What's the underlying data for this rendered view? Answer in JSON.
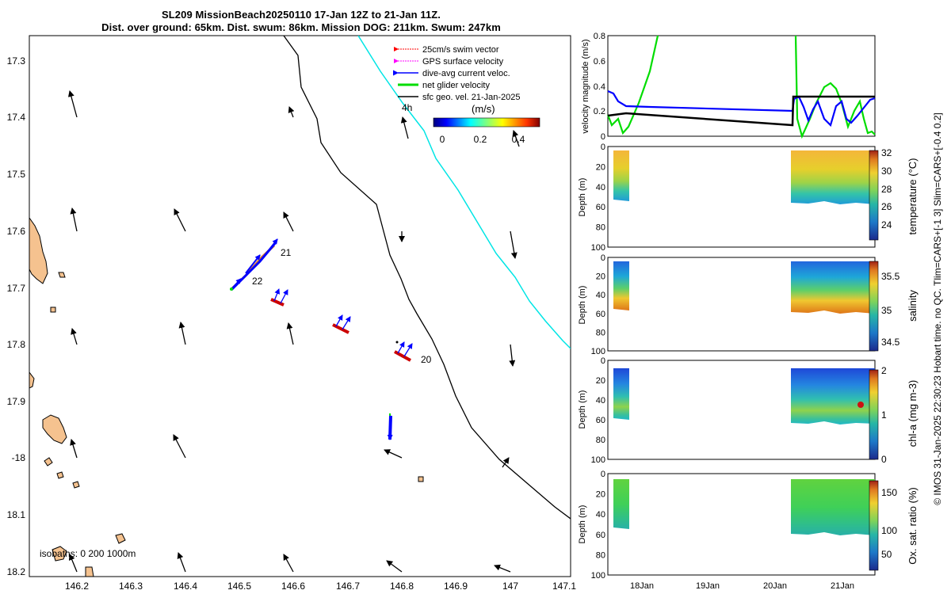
{
  "header": {
    "line1": "SL209 MissionBeach20250110 17-Jan 12Z to 21-Jan 11Z.",
    "line2": "Dist. over ground: 65km. Dist. swum: 86km. Mission DOG: 211km. Swum: 247km"
  },
  "map": {
    "lat_ticks": [
      "17.3",
      "17.4",
      "17.5",
      "17.6",
      "17.7",
      "17.8",
      "17.9",
      "-18",
      "18.1",
      "18.2"
    ],
    "lon_ticks": [
      "146.2",
      "146.3",
      "146.4",
      "146.5",
      "146.6",
      "146.7",
      "146.8",
      "146.9",
      "147",
      "147.1"
    ],
    "legend": {
      "items": [
        {
          "label": "25cm/s swim vector",
          "color": "#ff0000"
        },
        {
          "label": "GPS surface velocity",
          "color": "#ff00ff"
        },
        {
          "label": "dive-avg current veloc.",
          "color": "#0000ff"
        },
        {
          "label": "net glider velocity",
          "color": "#00dd00"
        },
        {
          "label": "sfc geo. vel. 21-Jan-2025",
          "color": "#000000"
        }
      ],
      "time_label": "4h",
      "colorbar_title": "(m/s)",
      "colorbar_ticks": [
        "0",
        "0.2",
        "0.4"
      ]
    },
    "day_labels": [
      "21",
      "22",
      "20"
    ],
    "isobaths_label": "isobaths: 0   200  1000m"
  },
  "panels": {
    "velocity": {
      "ylabel": "velocity magnitude (m/s)",
      "yticks": [
        "0",
        "0.2",
        "0.4",
        "0.6",
        "0.8"
      ]
    },
    "depth_ylabel": "Depth (m)",
    "depth_ticks": [
      "0",
      "20",
      "40",
      "60",
      "80",
      "100"
    ],
    "temperature": {
      "label": "temperature (°C)",
      "ticks": [
        "24",
        "26",
        "28",
        "30",
        "32"
      ]
    },
    "salinity": {
      "label": "salinity",
      "ticks": [
        "34.5",
        "35",
        "35.5"
      ]
    },
    "chla": {
      "label": "chl-a (mg m-3)",
      "ticks": [
        "0",
        "1",
        "2"
      ]
    },
    "oxygen": {
      "label": "Ox. sat. ratio (%)",
      "ticks": [
        "50",
        "100",
        "150"
      ]
    },
    "xticks": [
      "18Jan",
      "19Jan",
      "20Jan",
      "21Jan"
    ]
  },
  "footer": "© IMOS 31-Jan-2025 22:30:23 Hobart time. no QC. Tlim=CARS+[-1 3] Slim=CARS+[-0.4 0.2]",
  "colors": {
    "coast": "#f5c28f",
    "isobath200": "#000000",
    "isobath1000": "#00e5e5",
    "swim": "#ff0000",
    "dive_avg": "#0000ff",
    "net": "#00dd00"
  }
}
